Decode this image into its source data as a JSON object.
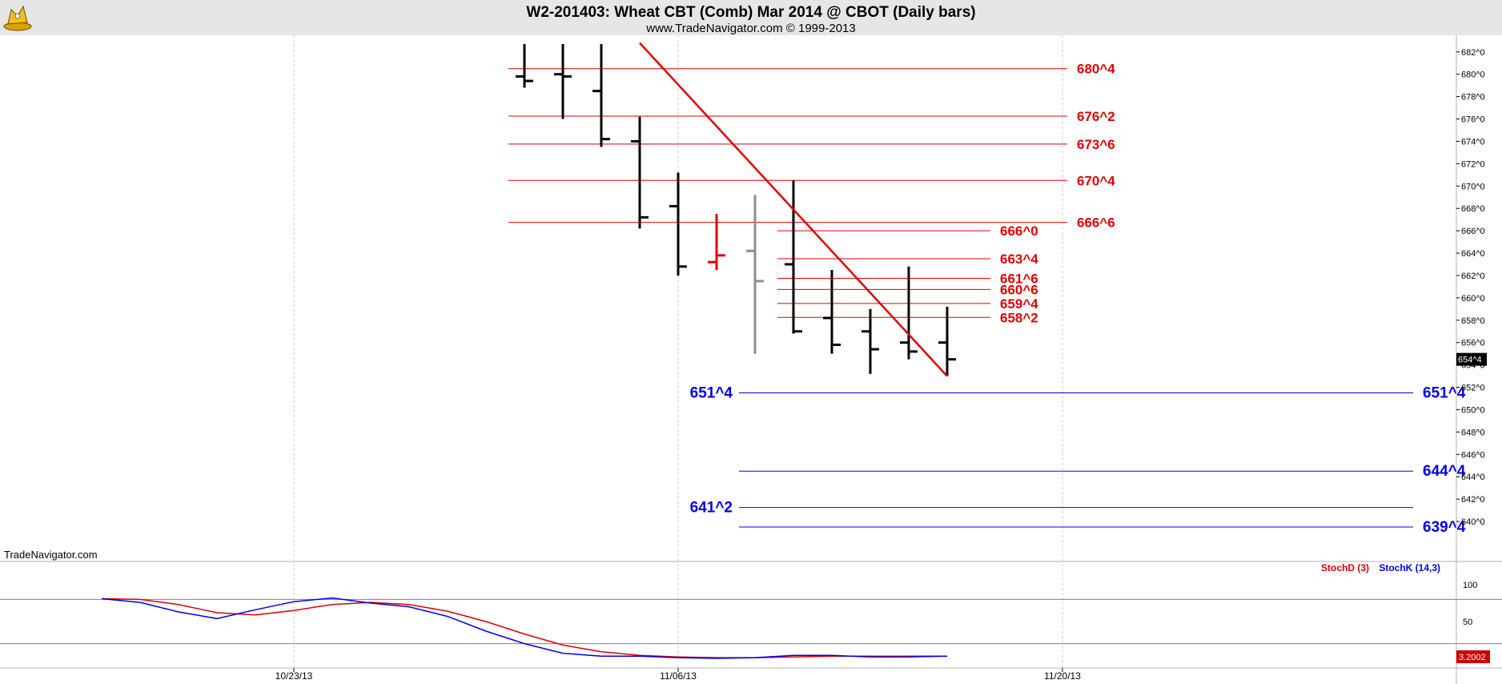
{
  "title": "W2-201403:  Wheat CBT (Comb) Mar 2014 @ CBOT  (Daily bars)",
  "subtitle": "www.TradeNavigator.com © 1999-2013",
  "watermark": "TradeNavigator.com",
  "logo": "tradenavigator-logo",
  "colors": {
    "background": "#ffffff",
    "header_bg": "#e6e6e6",
    "bar": "#000000",
    "bar_up": "#e00000",
    "bar_gray": "#8c8c8c",
    "red_level": "#e00000",
    "blue_level": "#0000ee",
    "stoch_d": "#e00000",
    "stoch_k": "#0000ee"
  },
  "chart_data": [
    {
      "type": "ohlc",
      "ylim": [
        638.5,
        682.7
      ],
      "y_ticks": [
        "682^0",
        "680^0",
        "678^0",
        "676^0",
        "674^0",
        "672^0",
        "670^0",
        "668^0",
        "666^0",
        "664^0",
        "662^0",
        "660^0",
        "658^0",
        "656^0",
        "654^0",
        "652^0",
        "650^0",
        "648^0",
        "646^0",
        "644^0",
        "642^0",
        "640^0"
      ],
      "x_ticks": [
        "10/23/13",
        "11/06/13",
        "11/20/13"
      ],
      "last_price_label": "654^4",
      "grid_dates": [
        "10/23/13",
        "11/06/13",
        "11/20/13"
      ],
      "bars": [
        {
          "date": "10/31/13",
          "high": 683.0,
          "low": 678.8,
          "open": 679.8,
          "close": 679.4,
          "color": "black"
        },
        {
          "date": "11/01/13",
          "high": 683.0,
          "low": 676.0,
          "open": 680.0,
          "close": 679.8,
          "color": "black"
        },
        {
          "date": "11/04/13",
          "high": 683.0,
          "low": 673.5,
          "open": 678.5,
          "close": 674.2,
          "color": "black"
        },
        {
          "date": "11/05/13",
          "high": 676.2,
          "low": 666.2,
          "open": 674.0,
          "close": 667.2,
          "color": "black"
        },
        {
          "date": "11/06/13",
          "high": 671.2,
          "low": 662.0,
          "open": 668.2,
          "close": 662.8,
          "color": "black"
        },
        {
          "date": "11/07/13",
          "high": 667.5,
          "low": 662.5,
          "open": 663.2,
          "close": 663.8,
          "color": "red"
        },
        {
          "date": "11/08/13",
          "high": 669.2,
          "low": 655.0,
          "open": 664.2,
          "close": 661.5,
          "color": "gray"
        },
        {
          "date": "11/11/13",
          "high": 670.5,
          "low": 656.8,
          "open": 663.0,
          "close": 657.0,
          "color": "black"
        },
        {
          "date": "11/12/13",
          "high": 662.5,
          "low": 655.0,
          "open": 658.2,
          "close": 655.8,
          "color": "black"
        },
        {
          "date": "11/13/13",
          "high": 659.0,
          "low": 653.2,
          "open": 657.0,
          "close": 655.4,
          "color": "black"
        },
        {
          "date": "11/14/13",
          "high": 662.8,
          "low": 654.5,
          "open": 656.0,
          "close": 655.2,
          "color": "black"
        },
        {
          "date": "11/15/13",
          "high": 659.2,
          "low": 653.0,
          "open": 656.0,
          "close": 654.5,
          "color": "black"
        }
      ],
      "trendline": {
        "from": {
          "date": "11/05/13",
          "price": 682.8
        },
        "to": {
          "date": "11/15/13",
          "price": 653.0
        }
      },
      "levels": [
        {
          "label": "680^4",
          "price": 680.5,
          "color": "red",
          "start_date": "10/31/13",
          "end_date": "11/20/13",
          "label_side": "right"
        },
        {
          "label": "676^2",
          "price": 676.25,
          "color": "red",
          "start_date": "10/31/13",
          "end_date": "11/20/13",
          "label_side": "right"
        },
        {
          "label": "673^6",
          "price": 673.75,
          "color": "red",
          "start_date": "10/31/13",
          "end_date": "11/20/13",
          "label_side": "right"
        },
        {
          "label": "670^4",
          "price": 670.5,
          "color": "red",
          "start_date": "10/31/13",
          "end_date": "11/20/13",
          "label_side": "right"
        },
        {
          "label": "666^6",
          "price": 666.75,
          "color": "red",
          "start_date": "10/31/13",
          "end_date": "11/20/13",
          "label_side": "right"
        },
        {
          "label": "666^0",
          "price": 666.0,
          "color": "red",
          "start_date": "11/11/13",
          "end_date": "11/18/13",
          "label_side": "right"
        },
        {
          "label": "663^4",
          "price": 663.5,
          "color": "red",
          "start_date": "11/11/13",
          "end_date": "11/18/13",
          "label_side": "right"
        },
        {
          "label": "661^6",
          "price": 661.75,
          "color": "red",
          "start_date": "11/11/13",
          "end_date": "11/18/13",
          "label_side": "right"
        },
        {
          "label": "660^6",
          "price": 660.75,
          "color": "red",
          "start_date": "11/11/13",
          "end_date": "11/18/13",
          "label_side": "right"
        },
        {
          "label": "659^4",
          "price": 659.5,
          "color": "red",
          "start_date": "11/11/13",
          "end_date": "11/18/13",
          "label_side": "right"
        },
        {
          "label": "658^2",
          "price": 658.25,
          "color": "red",
          "start_date": "11/11/13",
          "end_date": "11/18/13",
          "label_side": "right"
        },
        {
          "label": "651^4",
          "price": 651.5,
          "color": "blue",
          "start_date": "11/08/13",
          "end_date": "12/03/13",
          "label_side": "both"
        },
        {
          "label": "644^4",
          "price": 644.5,
          "color": "blue",
          "start_date": "11/08/13",
          "end_date": "12/03/13",
          "label_side": "right"
        },
        {
          "label": "641^2",
          "price": 641.25,
          "color": "blue",
          "start_date": "11/08/13",
          "end_date": "12/03/13",
          "label_side": "left"
        },
        {
          "label": "639^4",
          "price": 639.5,
          "color": "blue",
          "start_date": "11/08/13",
          "end_date": "12/03/13",
          "label_side": "right"
        }
      ]
    },
    {
      "type": "line",
      "ylim": [
        0,
        100
      ],
      "y_ticks": [
        "100",
        "50"
      ],
      "reference_lines": [
        80,
        20
      ],
      "last_value_label": "3.2002",
      "series": [
        {
          "name": "StochD (3)",
          "color": "red",
          "points": [
            {
              "date": "10/16/13",
              "value": 81
            },
            {
              "date": "10/17/13",
              "value": 80
            },
            {
              "date": "10/18/13",
              "value": 73
            },
            {
              "date": "10/21/13",
              "value": 62
            },
            {
              "date": "10/22/13",
              "value": 59
            },
            {
              "date": "10/23/13",
              "value": 65
            },
            {
              "date": "10/24/13",
              "value": 73
            },
            {
              "date": "10/25/13",
              "value": 76
            },
            {
              "date": "10/28/13",
              "value": 73
            },
            {
              "date": "10/29/13",
              "value": 64
            },
            {
              "date": "10/30/13",
              "value": 50
            },
            {
              "date": "10/31/13",
              "value": 33
            },
            {
              "date": "11/01/13",
              "value": 18
            },
            {
              "date": "11/04/13",
              "value": 9
            },
            {
              "date": "11/05/13",
              "value": 4
            },
            {
              "date": "11/06/13",
              "value": 2
            },
            {
              "date": "11/07/13",
              "value": 1
            },
            {
              "date": "11/08/13",
              "value": 1
            },
            {
              "date": "11/11/13",
              "value": 2
            },
            {
              "date": "11/12/13",
              "value": 3
            },
            {
              "date": "11/13/13",
              "value": 3
            },
            {
              "date": "11/14/13",
              "value": 3
            },
            {
              "date": "11/15/13",
              "value": 3
            }
          ]
        },
        {
          "name": "StochK (14,3)",
          "color": "blue",
          "points": [
            {
              "date": "10/16/13",
              "value": 81
            },
            {
              "date": "10/17/13",
              "value": 76
            },
            {
              "date": "10/18/13",
              "value": 63
            },
            {
              "date": "10/21/13",
              "value": 54
            },
            {
              "date": "10/22/13",
              "value": 66
            },
            {
              "date": "10/23/13",
              "value": 77
            },
            {
              "date": "10/24/13",
              "value": 82
            },
            {
              "date": "10/25/13",
              "value": 75
            },
            {
              "date": "10/28/13",
              "value": 70
            },
            {
              "date": "10/29/13",
              "value": 57
            },
            {
              "date": "10/30/13",
              "value": 37
            },
            {
              "date": "10/31/13",
              "value": 20
            },
            {
              "date": "11/01/13",
              "value": 7
            },
            {
              "date": "11/04/13",
              "value": 3
            },
            {
              "date": "11/05/13",
              "value": 3
            },
            {
              "date": "11/06/13",
              "value": 1
            },
            {
              "date": "11/07/13",
              "value": 0
            },
            {
              "date": "11/08/13",
              "value": 1
            },
            {
              "date": "11/11/13",
              "value": 4
            },
            {
              "date": "11/12/13",
              "value": 4
            },
            {
              "date": "11/13/13",
              "value": 2
            },
            {
              "date": "11/14/13",
              "value": 2
            },
            {
              "date": "11/15/13",
              "value": 3
            }
          ]
        }
      ],
      "legend": [
        {
          "label": "StochD (3)",
          "color": "red"
        },
        {
          "label": "StochK (14,3)",
          "color": "blue"
        }
      ]
    }
  ]
}
